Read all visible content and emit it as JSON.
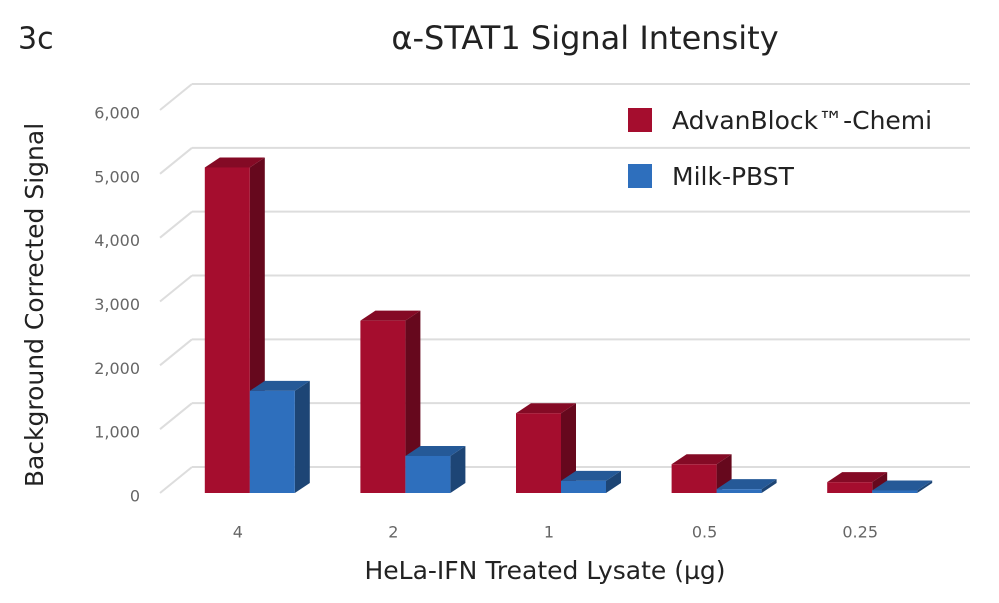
{
  "panel_label": "3c",
  "chart_data": {
    "type": "bar3d",
    "title": "α-STAT1 Signal Intensity",
    "x_label": "HeLa-IFN Treated Lysate (µg)",
    "y_label": "Background Corrected Signal",
    "categories": [
      "4",
      "2",
      "1",
      "0.5",
      "0.25"
    ],
    "series": [
      {
        "name": "AdvanBlock™-Chemi",
        "color": "#a50d2e",
        "values": [
          5100,
          2700,
          1250,
          450,
          170
        ]
      },
      {
        "name": "Milk-PBST",
        "color": "#2e6fbd",
        "values": [
          1600,
          580,
          190,
          60,
          40
        ]
      }
    ],
    "ylim": [
      0,
      6000
    ],
    "yticks": [
      0,
      {
        "value": 1000,
        "label": "1,000"
      },
      {
        "value": 2000,
        "label": "2,000"
      },
      {
        "value": 3000,
        "label": "3,000"
      },
      {
        "value": 4000,
        "label": "4,000"
      },
      {
        "value": 5000,
        "label": "5,000"
      },
      {
        "value": 6000,
        "label": "6,000"
      }
    ],
    "grid": true,
    "legend": "top-right"
  }
}
